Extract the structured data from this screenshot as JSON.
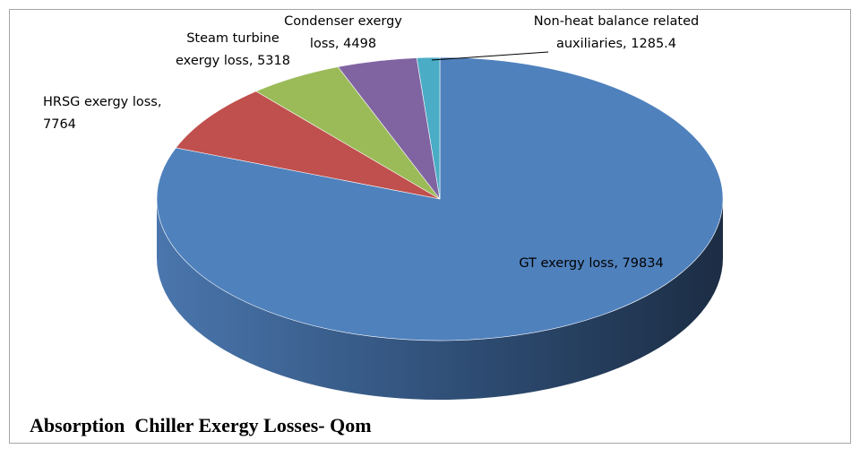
{
  "chart_data": {
    "type": "pie3d",
    "title": "Absorption  Chiller Exergy Losses- Qom",
    "values": [
      79834,
      7764,
      5318,
      4498,
      1285.4
    ],
    "value_labels": [
      "GT exergy loss, 79834",
      "HRSG exergy loss, 7764",
      "Steam turbine exergy loss, 5318",
      "Condenser exergy loss, 4498",
      "Non-heat balance related auxiliaries, 1285.4"
    ],
    "colors": [
      "#4f81bd",
      "#c0504d",
      "#9bbb59",
      "#8064a2",
      "#4bacc6"
    ]
  }
}
